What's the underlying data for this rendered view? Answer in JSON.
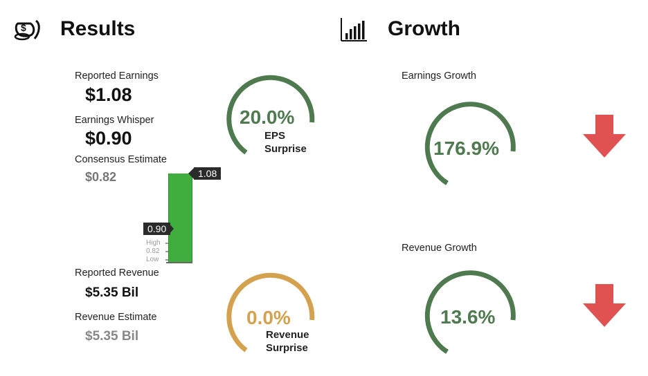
{
  "results": {
    "title": "Results",
    "reported_earnings": {
      "label": "Reported Earnings",
      "value": "$1.08"
    },
    "earnings_whisper": {
      "label": "Earnings Whisper",
      "value": "$0.90"
    },
    "consensus_estimate": {
      "label": "Consensus Estimate",
      "value": "$0.82"
    },
    "reported_revenue": {
      "label": "Reported Revenue",
      "value": "$5.35 Bil"
    },
    "revenue_estimate": {
      "label": "Revenue Estimate",
      "value": "$5.35 Bil"
    },
    "eps_gauge": {
      "value": "20.0%",
      "line1": "EPS",
      "line2": "Surprise",
      "color": "#4f7a4f"
    },
    "revenue_gauge": {
      "value": "0.0%",
      "line1": "Revenue",
      "line2": "Surprise",
      "color": "#d4a24e"
    },
    "bar_chart": {
      "actual_tag": "1.08",
      "whisper_tag": "0.90",
      "high_label": "High",
      "consensus_label": "0.82",
      "low_label": "Low",
      "bar_color": "#3fae3f"
    }
  },
  "growth": {
    "title": "Growth",
    "earnings_growth": {
      "label": "Earnings Growth",
      "value": "176.9%",
      "color": "#4f7a4f",
      "direction": "down"
    },
    "revenue_growth": {
      "label": "Revenue Growth",
      "value": "13.6%",
      "color": "#4f7a4f",
      "direction": "down"
    },
    "arrow_color": "#e05252"
  },
  "icons": {
    "results": "money-bag-icon",
    "growth": "bar-chart-icon"
  }
}
